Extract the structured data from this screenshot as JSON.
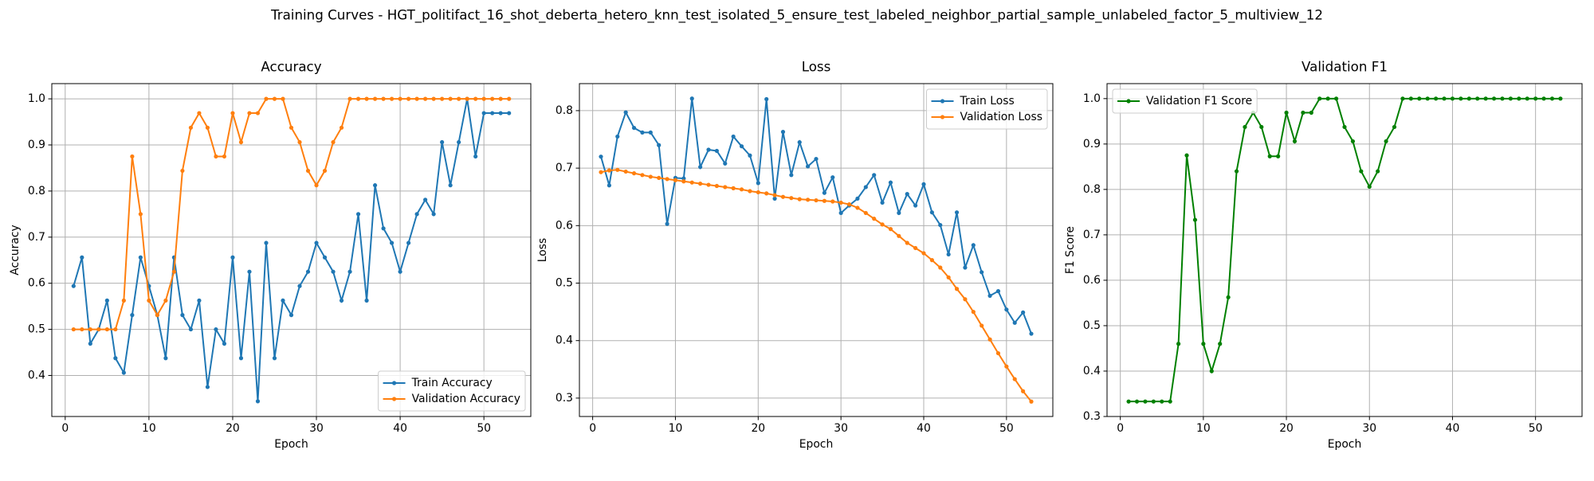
{
  "title": "Training Curves - HGT_politifact_16_shot_deberta_hetero_knn_test_isolated_5_ensure_test_labeled_neighbor_partial_sample_unlabeled_factor_5_multiview_12",
  "chart_data": [
    {
      "type": "line",
      "title": "Accuracy",
      "x_label": "Epoch",
      "y_label": "Accuracy",
      "x": [
        1,
        2,
        3,
        4,
        5,
        6,
        7,
        8,
        9,
        10,
        11,
        12,
        13,
        14,
        15,
        16,
        17,
        18,
        19,
        20,
        21,
        22,
        23,
        24,
        25,
        26,
        27,
        28,
        29,
        30,
        31,
        32,
        33,
        34,
        35,
        36,
        37,
        38,
        39,
        40,
        41,
        42,
        43,
        44,
        45,
        46,
        47,
        48,
        49,
        50,
        51,
        52,
        53
      ],
      "series": [
        {
          "name": "Train Accuracy",
          "color": "#1f77b4",
          "values": [
            0.594,
            0.656,
            0.469,
            0.5,
            0.5625,
            0.4375,
            0.406,
            0.531,
            0.656,
            0.594,
            0.531,
            0.4375,
            0.656,
            0.531,
            0.5,
            0.5625,
            0.375,
            0.5,
            0.469,
            0.656,
            0.4375,
            0.625,
            0.344,
            0.6875,
            0.4375,
            0.5625,
            0.531,
            0.594,
            0.625,
            0.6875,
            0.656,
            0.625,
            0.5625,
            0.625,
            0.75,
            0.5625,
            0.8125,
            0.719,
            0.6875,
            0.625,
            0.6875,
            0.75,
            0.781,
            0.75,
            0.906,
            0.8125,
            0.906,
            1.0,
            0.875,
            0.969,
            0.969,
            0.969,
            0.969
          ]
        },
        {
          "name": "Validation Accuracy",
          "color": "#ff7f0e",
          "values": [
            0.5,
            0.5,
            0.5,
            0.5,
            0.5,
            0.5,
            0.5625,
            0.875,
            0.75,
            0.5625,
            0.531,
            0.5625,
            0.625,
            0.844,
            0.9375,
            0.969,
            0.9375,
            0.875,
            0.875,
            0.969,
            0.906,
            0.969,
            0.969,
            1.0,
            1.0,
            1.0,
            0.9375,
            0.906,
            0.844,
            0.8125,
            0.844,
            0.906,
            0.9375,
            1.0,
            1.0,
            1.0,
            1.0,
            1.0,
            1.0,
            1.0,
            1.0,
            1.0,
            1.0,
            1.0,
            1.0,
            1.0,
            1.0,
            1.0,
            1.0,
            1.0,
            1.0,
            1.0,
            1.0
          ]
        }
      ],
      "xlim": [
        -1.6,
        55.6
      ],
      "ylim": [
        0.311,
        1.033
      ],
      "xticks": [
        0,
        10,
        20,
        30,
        40,
        50
      ],
      "yticks": [
        0.4,
        0.5,
        0.6,
        0.7,
        0.8,
        0.9,
        {
          "value": 1.0,
          "label": "1.0"
        }
      ],
      "grid": true,
      "legend": "lower right"
    },
    {
      "type": "line",
      "title": "Loss",
      "x_label": "Epoch",
      "y_label": "Loss",
      "x": [
        1,
        2,
        3,
        4,
        5,
        6,
        7,
        8,
        9,
        10,
        11,
        12,
        13,
        14,
        15,
        16,
        17,
        18,
        19,
        20,
        21,
        22,
        23,
        24,
        25,
        26,
        27,
        28,
        29,
        30,
        31,
        32,
        33,
        34,
        35,
        36,
        37,
        38,
        39,
        40,
        41,
        42,
        43,
        44,
        45,
        46,
        47,
        48,
        49,
        50,
        51,
        52,
        53
      ],
      "series": [
        {
          "name": "Train Loss",
          "color": "#1f77b4",
          "values": [
            0.72,
            0.67,
            0.755,
            0.797,
            0.77,
            0.762,
            0.762,
            0.74,
            0.603,
            0.683,
            0.682,
            0.821,
            0.702,
            0.732,
            0.73,
            0.708,
            0.755,
            0.738,
            0.722,
            0.674,
            0.82,
            0.647,
            0.763,
            0.688,
            0.745,
            0.703,
            0.716,
            0.657,
            0.684,
            0.622,
            0.635,
            0.647,
            0.667,
            0.688,
            0.64,
            0.675,
            0.622,
            0.655,
            0.635,
            0.672,
            0.623,
            0.601,
            0.55,
            0.623,
            0.527,
            0.566,
            0.519,
            0.478,
            0.486,
            0.454,
            0.431,
            0.449,
            0.412
          ]
        },
        {
          "name": "Validation Loss",
          "color": "#ff7f0e",
          "values": [
            0.693,
            0.696,
            0.697,
            0.694,
            0.691,
            0.688,
            0.685,
            0.683,
            0.681,
            0.679,
            0.677,
            0.675,
            0.673,
            0.671,
            0.669,
            0.667,
            0.665,
            0.663,
            0.66,
            0.658,
            0.656,
            0.653,
            0.65,
            0.648,
            0.646,
            0.645,
            0.644,
            0.643,
            0.642,
            0.64,
            0.637,
            0.631,
            0.622,
            0.612,
            0.602,
            0.594,
            0.582,
            0.57,
            0.561,
            0.552,
            0.54,
            0.527,
            0.51,
            0.49,
            0.472,
            0.45,
            0.426,
            0.402,
            0.378,
            0.355,
            0.333,
            0.312,
            0.294
          ]
        }
      ],
      "xlim": [
        -1.6,
        55.6
      ],
      "ylim": [
        0.268,
        0.847
      ],
      "xticks": [
        0,
        10,
        20,
        30,
        40,
        50
      ],
      "yticks": [
        0.3,
        0.4,
        0.5,
        0.6,
        0.7,
        0.8
      ],
      "grid": true,
      "legend": "upper right"
    },
    {
      "type": "line",
      "title": "Validation F1",
      "x_label": "Epoch",
      "y_label": "F1 Score",
      "x": [
        1,
        2,
        3,
        4,
        5,
        6,
        7,
        8,
        9,
        10,
        11,
        12,
        13,
        14,
        15,
        16,
        17,
        18,
        19,
        20,
        21,
        22,
        23,
        24,
        25,
        26,
        27,
        28,
        29,
        30,
        31,
        32,
        33,
        34,
        35,
        36,
        37,
        38,
        39,
        40,
        41,
        42,
        43,
        44,
        45,
        46,
        47,
        48,
        49,
        50,
        51,
        52,
        53
      ],
      "series": [
        {
          "name": "Validation F1 Score",
          "color": "#008000",
          "values": [
            0.333,
            0.333,
            0.333,
            0.333,
            0.333,
            0.333,
            0.46,
            0.875,
            0.733,
            0.46,
            0.4,
            0.46,
            0.5625,
            0.84,
            0.9375,
            0.969,
            0.9375,
            0.873,
            0.873,
            0.969,
            0.906,
            0.969,
            0.969,
            1.0,
            1.0,
            1.0,
            0.9375,
            0.906,
            0.84,
            0.806,
            0.84,
            0.906,
            0.9375,
            1.0,
            1.0,
            1.0,
            1.0,
            1.0,
            1.0,
            1.0,
            1.0,
            1.0,
            1.0,
            1.0,
            1.0,
            1.0,
            1.0,
            1.0,
            1.0,
            1.0,
            1.0,
            1.0,
            1.0
          ]
        }
      ],
      "xlim": [
        -1.6,
        55.6
      ],
      "ylim": [
        0.3,
        1.033
      ],
      "xticks": [
        0,
        10,
        20,
        30,
        40,
        50
      ],
      "yticks": [
        {
          "value": 0.3,
          "label": "0.3"
        },
        0.4,
        0.5,
        0.6,
        0.7,
        0.8,
        0.9,
        {
          "value": 1.0,
          "label": "1.0"
        }
      ],
      "grid": true,
      "legend": "upper left"
    }
  ]
}
